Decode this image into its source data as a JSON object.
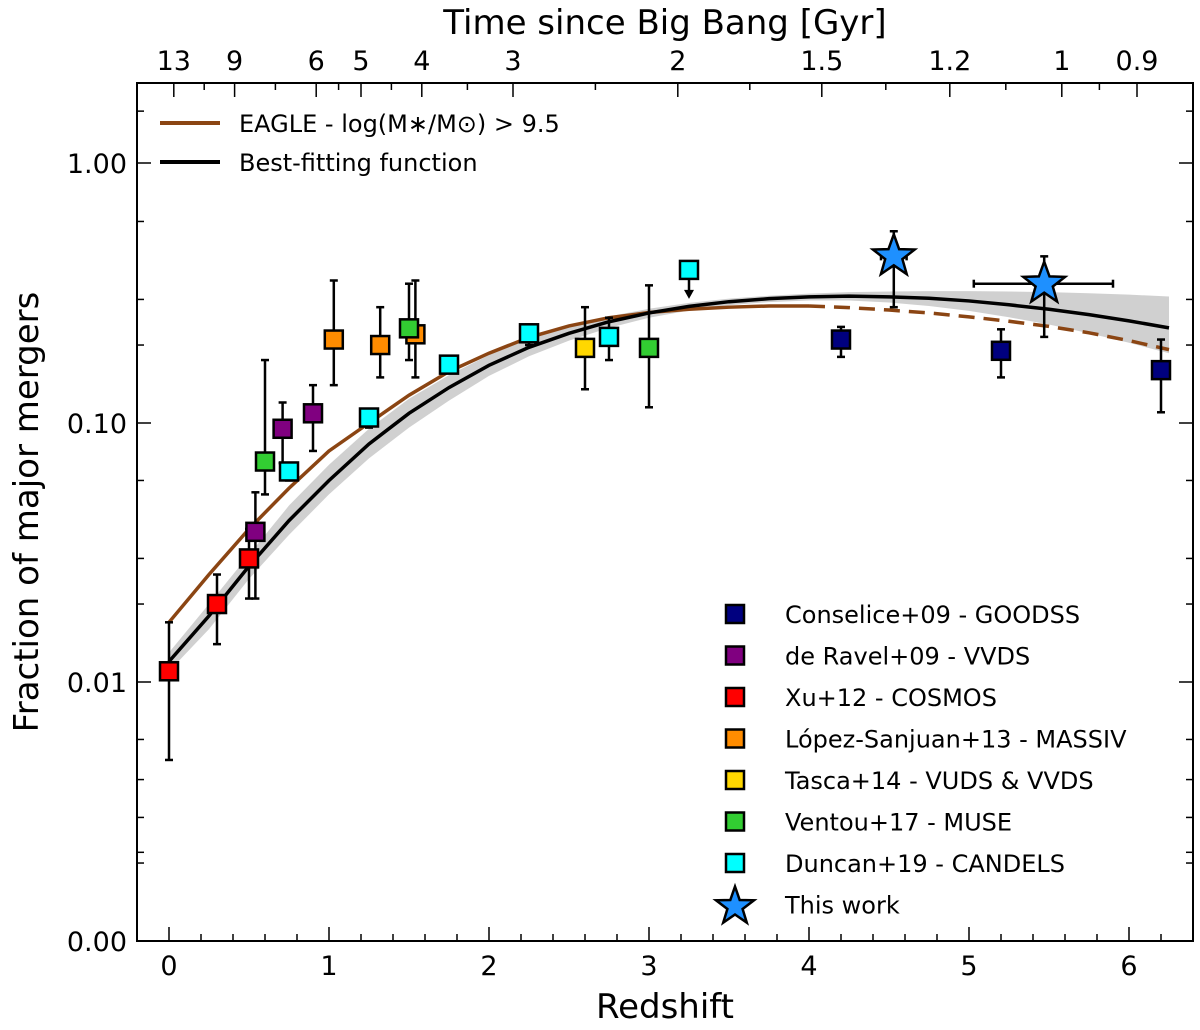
{
  "chart_data": {
    "type": "scatter",
    "xlabel": "Redshift",
    "ylabel": "Fraction of major mergers",
    "top_xlabel": "Time since Big Bang [Gyr]",
    "xlim": [
      -0.2,
      6.4
    ],
    "ylim": [
      0.0,
      1.0
    ],
    "y_scale": "log with lower bound labelled 0.00",
    "x_ticks": [
      "0",
      "1",
      "2",
      "3",
      "4",
      "5",
      "6"
    ],
    "y_ticks": [
      "0.00",
      "0.01",
      "0.10",
      "1.00"
    ],
    "top_ticks": [
      {
        "label": "13",
        "redshift": 0.03
      },
      {
        "label": "9",
        "redshift": 0.41
      },
      {
        "label": "6",
        "redshift": 0.92
      },
      {
        "label": "5",
        "redshift": 1.2
      },
      {
        "label": "4",
        "redshift": 1.58
      },
      {
        "label": "3",
        "redshift": 2.15
      },
      {
        "label": "2",
        "redshift": 3.18
      },
      {
        "label": "1.5",
        "redshift": 4.08
      },
      {
        "label": "1.2",
        "redshift": 4.88
      },
      {
        "label": "1",
        "redshift": 5.58
      },
      {
        "label": "0.9",
        "redshift": 6.05
      }
    ],
    "legend_position": "lower-right (markers), upper-left (lines)",
    "lines": [
      {
        "name": "EAGLE - log(M∗/M⊙) > 9.5",
        "color": "#8B4513",
        "points": [
          [
            0.0,
            0.017
          ],
          [
            0.25,
            0.026
          ],
          [
            0.5,
            0.039
          ],
          [
            0.75,
            0.056
          ],
          [
            1.0,
            0.078
          ],
          [
            1.25,
            0.1
          ],
          [
            1.5,
            0.128
          ],
          [
            1.75,
            0.158
          ],
          [
            2.0,
            0.186
          ],
          [
            2.25,
            0.214
          ],
          [
            2.5,
            0.237
          ],
          [
            2.75,
            0.255
          ],
          [
            3.0,
            0.267
          ],
          [
            3.25,
            0.275
          ],
          [
            3.5,
            0.28
          ],
          [
            3.75,
            0.283
          ],
          [
            4.0,
            0.283
          ]
        ],
        "dashed_points": [
          [
            4.0,
            0.283
          ],
          [
            4.25,
            0.279
          ],
          [
            4.5,
            0.273
          ],
          [
            4.75,
            0.266
          ],
          [
            5.0,
            0.257
          ],
          [
            5.25,
            0.247
          ],
          [
            5.5,
            0.236
          ],
          [
            5.75,
            0.223
          ],
          [
            6.0,
            0.208
          ],
          [
            6.25,
            0.192
          ]
        ]
      },
      {
        "name": "Best-fitting function",
        "color": "#000000",
        "points": [
          [
            0.0,
            0.012
          ],
          [
            0.25,
            0.018
          ],
          [
            0.5,
            0.028
          ],
          [
            0.75,
            0.042
          ],
          [
            1.0,
            0.06
          ],
          [
            1.25,
            0.083
          ],
          [
            1.5,
            0.109
          ],
          [
            1.75,
            0.137
          ],
          [
            2.0,
            0.167
          ],
          [
            2.25,
            0.196
          ],
          [
            2.5,
            0.222
          ],
          [
            2.75,
            0.246
          ],
          [
            3.0,
            0.266
          ],
          [
            3.25,
            0.282
          ],
          [
            3.5,
            0.294
          ],
          [
            3.75,
            0.302
          ],
          [
            4.0,
            0.307
          ],
          [
            4.25,
            0.309
          ],
          [
            4.5,
            0.307
          ],
          [
            4.75,
            0.303
          ],
          [
            5.0,
            0.296
          ],
          [
            5.25,
            0.286
          ],
          [
            5.5,
            0.275
          ],
          [
            5.75,
            0.262
          ],
          [
            6.0,
            0.248
          ],
          [
            6.25,
            0.233
          ]
        ],
        "band_upper": [
          [
            0.0,
            0.013
          ],
          [
            0.25,
            0.02
          ],
          [
            0.5,
            0.031
          ],
          [
            0.75,
            0.048
          ],
          [
            1.0,
            0.069
          ],
          [
            1.25,
            0.095
          ],
          [
            1.5,
            0.124
          ],
          [
            1.75,
            0.153
          ],
          [
            2.0,
            0.183
          ],
          [
            2.25,
            0.211
          ],
          [
            2.5,
            0.236
          ],
          [
            2.75,
            0.258
          ],
          [
            3.0,
            0.276
          ],
          [
            3.25,
            0.291
          ],
          [
            3.5,
            0.302
          ],
          [
            3.75,
            0.31
          ],
          [
            4.0,
            0.316
          ],
          [
            4.25,
            0.32
          ],
          [
            4.5,
            0.322
          ],
          [
            4.75,
            0.323
          ],
          [
            5.0,
            0.323
          ],
          [
            5.25,
            0.322
          ],
          [
            5.5,
            0.32
          ],
          [
            5.75,
            0.317
          ],
          [
            6.0,
            0.313
          ],
          [
            6.25,
            0.308
          ]
        ],
        "band_lower": [
          [
            0.0,
            0.011
          ],
          [
            0.25,
            0.016
          ],
          [
            0.5,
            0.025
          ],
          [
            0.75,
            0.037
          ],
          [
            1.0,
            0.053
          ],
          [
            1.25,
            0.073
          ],
          [
            1.5,
            0.096
          ],
          [
            1.75,
            0.122
          ],
          [
            2.0,
            0.152
          ],
          [
            2.25,
            0.181
          ],
          [
            2.5,
            0.208
          ],
          [
            2.75,
            0.233
          ],
          [
            3.0,
            0.255
          ],
          [
            3.25,
            0.272
          ],
          [
            3.5,
            0.285
          ],
          [
            3.75,
            0.293
          ],
          [
            4.0,
            0.297
          ],
          [
            4.25,
            0.297
          ],
          [
            4.5,
            0.292
          ],
          [
            4.75,
            0.283
          ],
          [
            5.0,
            0.271
          ],
          [
            5.25,
            0.256
          ],
          [
            5.5,
            0.24
          ],
          [
            5.75,
            0.222
          ],
          [
            6.0,
            0.204
          ],
          [
            6.25,
            0.186
          ]
        ]
      }
    ],
    "series": [
      {
        "name": "Conselice+09 - GOODSS",
        "color": "#00007F",
        "points": [
          {
            "x": 4.2,
            "y": 0.21,
            "ylo": 0.18,
            "yhi": 0.235
          },
          {
            "x": 5.2,
            "y": 0.19,
            "ylo": 0.15,
            "yhi": 0.23
          },
          {
            "x": 6.2,
            "y": 0.16,
            "ylo": 0.11,
            "yhi": 0.21
          }
        ]
      },
      {
        "name": "de Ravel+09 - VVDS",
        "color": "#800080",
        "points": [
          {
            "x": 0.54,
            "y": 0.038,
            "ylo": 0.021,
            "yhi": 0.054
          },
          {
            "x": 0.71,
            "y": 0.095,
            "ylo": 0.07,
            "yhi": 0.12
          },
          {
            "x": 0.9,
            "y": 0.109,
            "ylo": 0.078,
            "yhi": 0.14
          }
        ]
      },
      {
        "name": "Xu+12 - COSMOS",
        "color": "#FF0000",
        "points": [
          {
            "x": 0.0,
            "y": 0.011,
            "ylo": 0.005,
            "yhi": 0.017
          },
          {
            "x": 0.3,
            "y": 0.02,
            "ylo": 0.014,
            "yhi": 0.026
          },
          {
            "x": 0.5,
            "y": 0.03,
            "ylo": 0.021,
            "yhi": 0.039
          }
        ]
      },
      {
        "name": "López-Sanjuan+13 - MASSIV",
        "color": "#FF8C00",
        "points": [
          {
            "x": 1.03,
            "y": 0.21,
            "ylo": 0.14,
            "yhi": 0.355
          },
          {
            "x": 1.32,
            "y": 0.2,
            "ylo": 0.15,
            "yhi": 0.28
          },
          {
            "x": 1.54,
            "y": 0.22,
            "ylo": 0.15,
            "yhi": 0.355
          }
        ]
      },
      {
        "name": "Tasca+14 - VUDS & VVDS",
        "color": "#FFD700",
        "points": [
          {
            "x": 2.6,
            "y": 0.195,
            "ylo": 0.135,
            "yhi": 0.28
          }
        ]
      },
      {
        "name": "Ventou+17 - MUSE",
        "color": "#32CD32",
        "points": [
          {
            "x": 0.6,
            "y": 0.071,
            "ylo": 0.053,
            "yhi": 0.175
          },
          {
            "x": 1.5,
            "y": 0.232,
            "ylo": 0.175,
            "yhi": 0.345
          },
          {
            "x": 3.0,
            "y": 0.195,
            "ylo": 0.115,
            "yhi": 0.34
          }
        ]
      },
      {
        "name": "Duncan+19 - CANDELS",
        "color": "#00FFFF",
        "points": [
          {
            "x": 0.75,
            "y": 0.065,
            "ylo": 0.06,
            "yhi": 0.07
          },
          {
            "x": 1.25,
            "y": 0.105,
            "ylo": 0.096,
            "yhi": 0.112
          },
          {
            "x": 1.75,
            "y": 0.168,
            "ylo": 0.161,
            "yhi": 0.174
          },
          {
            "x": 2.25,
            "y": 0.222,
            "ylo": 0.2,
            "yhi": 0.24
          },
          {
            "x": 2.75,
            "y": 0.215,
            "ylo": 0.175,
            "yhi": 0.255
          },
          {
            "x": 3.25,
            "y": 0.39,
            "upper_limit": true
          }
        ]
      },
      {
        "name": "This work",
        "color": "#1E90FF",
        "marker": "star",
        "points": [
          {
            "x": 4.53,
            "y": 0.44,
            "ylo": 0.28,
            "yhi": 0.55,
            "xlo": 4.45,
            "xhi": 4.61
          },
          {
            "x": 5.47,
            "y": 0.345,
            "ylo": 0.215,
            "yhi": 0.44,
            "xlo": 5.03,
            "xhi": 5.9
          }
        ]
      }
    ]
  }
}
